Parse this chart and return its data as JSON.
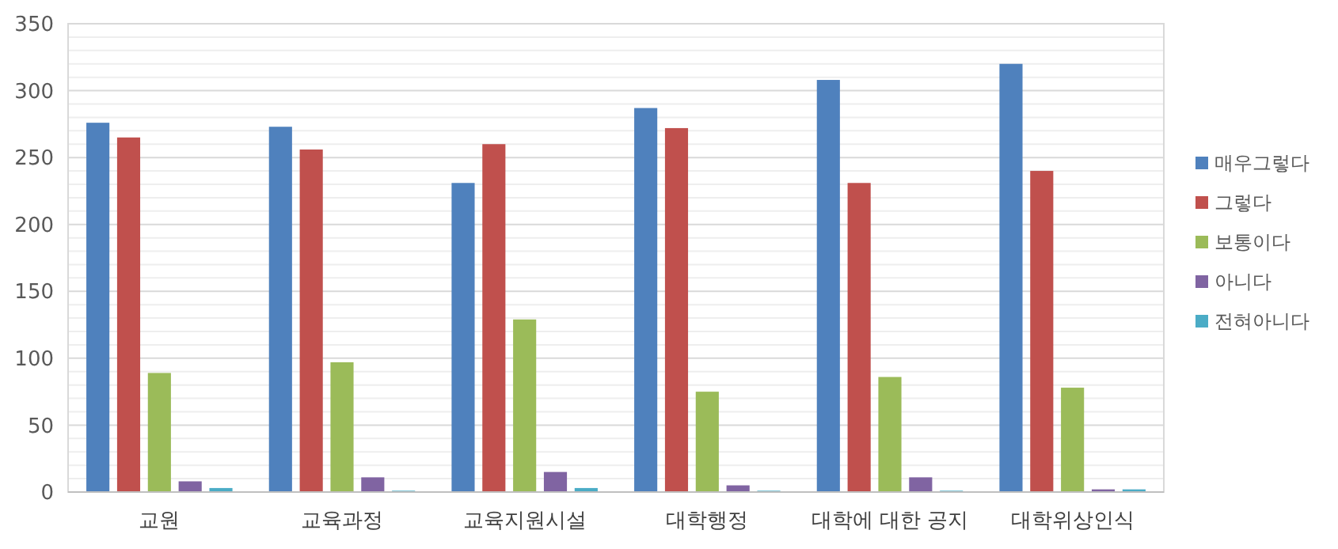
{
  "chart_data": {
    "type": "bar",
    "categories": [
      "교원",
      "교육과정",
      "교육지원시설",
      "대학행정",
      "대학에 대한 공지",
      "대학위상인식"
    ],
    "series": [
      {
        "name": "매우그렇다",
        "color": "#4f81bd",
        "values": [
          276,
          273,
          231,
          287,
          308,
          320
        ]
      },
      {
        "name": "그렇다",
        "color": "#c0504d",
        "values": [
          265,
          256,
          260,
          272,
          231,
          240
        ]
      },
      {
        "name": "보통이다",
        "color": "#9bbb59",
        "values": [
          89,
          97,
          129,
          75,
          86,
          78
        ]
      },
      {
        "name": "아니다",
        "color": "#8064a2",
        "values": [
          8,
          11,
          15,
          5,
          11,
          2
        ]
      },
      {
        "name": "전혀아니다",
        "color": "#4bacc6",
        "values": [
          3,
          1,
          3,
          1,
          1,
          2
        ]
      }
    ],
    "ylim": [
      0,
      350
    ],
    "yticks": [
      0,
      {
        "value": 10,
        "label": null
      },
      {
        "value": 20,
        "label": null
      },
      {
        "value": 30,
        "label": null
      },
      {
        "value": 40,
        "label": null
      },
      50,
      {
        "value": 60,
        "label": null
      },
      {
        "value": 70,
        "label": null
      },
      {
        "value": 80,
        "label": null
      },
      {
        "value": 90,
        "label": null
      },
      100,
      {
        "value": 110,
        "label": null
      },
      {
        "value": 120,
        "label": null
      },
      {
        "value": 130,
        "label": null
      },
      {
        "value": 140,
        "label": null
      },
      150,
      {
        "value": 160,
        "label": null
      },
      {
        "value": 170,
        "label": null
      },
      {
        "value": 180,
        "label": null
      },
      {
        "value": 190,
        "label": null
      },
      200,
      {
        "value": 210,
        "label": null
      },
      {
        "value": 220,
        "label": null
      },
      {
        "value": 230,
        "label": null
      },
      {
        "value": 240,
        "label": null
      },
      250,
      {
        "value": 260,
        "label": null
      },
      {
        "value": 270,
        "label": null
      },
      {
        "value": 280,
        "label": null
      },
      {
        "value": 290,
        "label": null
      },
      300,
      {
        "value": 310,
        "label": null
      },
      {
        "value": 320,
        "label": null
      },
      {
        "value": 330,
        "label": null
      },
      {
        "value": 340,
        "label": null
      },
      350
    ],
    "grid": "y",
    "legend": "right"
  }
}
